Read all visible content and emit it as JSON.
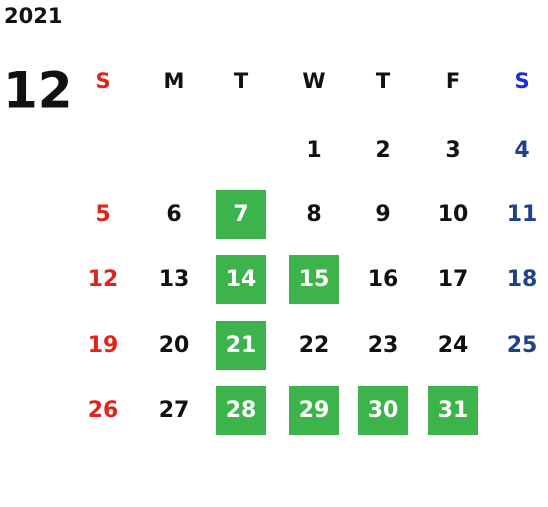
{
  "year": "2021",
  "month": "12",
  "weekdays": [
    "S",
    "M",
    "T",
    "W",
    "T",
    "F",
    "S"
  ],
  "weeks": [
    [
      null,
      null,
      null,
      "1",
      "2",
      "3",
      "4"
    ],
    [
      "5",
      "6",
      "7",
      "8",
      "9",
      "10",
      "11"
    ],
    [
      "12",
      "13",
      "14",
      "15",
      "16",
      "17",
      "18"
    ],
    [
      "19",
      "20",
      "21",
      "22",
      "23",
      "24",
      "25"
    ],
    [
      "26",
      "27",
      "28",
      "29",
      "30",
      "31",
      null
    ]
  ],
  "marked_days": [
    "7",
    "14",
    "15",
    "21",
    "28",
    "29",
    "30",
    "31"
  ],
  "colors": {
    "sunday": "#e2231a",
    "saturday_header": "#1d2ad6",
    "saturday": "#1f3f8f",
    "weekday": "#111111",
    "marked_fill": "#3cb44b",
    "marked_text": "#ffffff"
  }
}
